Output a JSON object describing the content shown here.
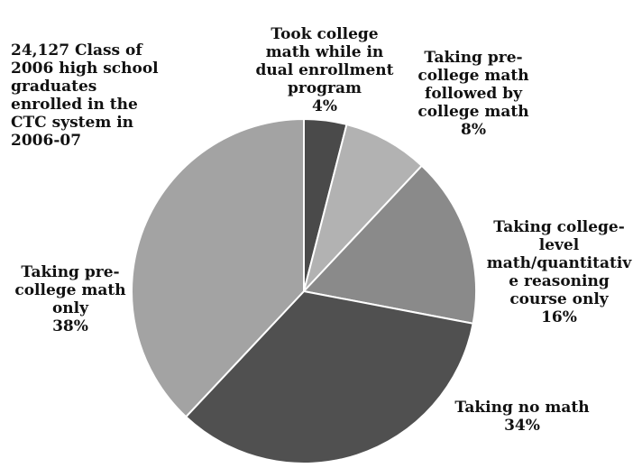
{
  "chart_data": {
    "type": "pie",
    "title": "",
    "annotation": "24,127 Class of\n2006 high school\ngraduates\nenrolled in the\nCTC system in\n2006-07",
    "slices": [
      {
        "label": "Took college\nmath while in\ndual enrollment\nprogram",
        "value": 4,
        "display": "4%",
        "color": "#4a4a4a"
      },
      {
        "label": "Taking pre-\ncollege math\nfollowed by\ncollege math",
        "value": 8,
        "display": "8%",
        "color": "#b2b2b2"
      },
      {
        "label": "Taking college-\nlevel\nmath/quantitativ\ne reasoning\ncourse only",
        "value": 16,
        "display": "16%",
        "color": "#8a8a8a"
      },
      {
        "label": "Taking no math",
        "value": 34,
        "display": "34%",
        "color": "#505050"
      },
      {
        "label": "Taking pre-\ncollege math\nonly",
        "value": 38,
        "display": "38%",
        "color": "#a3a3a3"
      }
    ],
    "start_angle_deg": 0,
    "direction": "clockwise",
    "legend": "none",
    "labels": "outside"
  }
}
